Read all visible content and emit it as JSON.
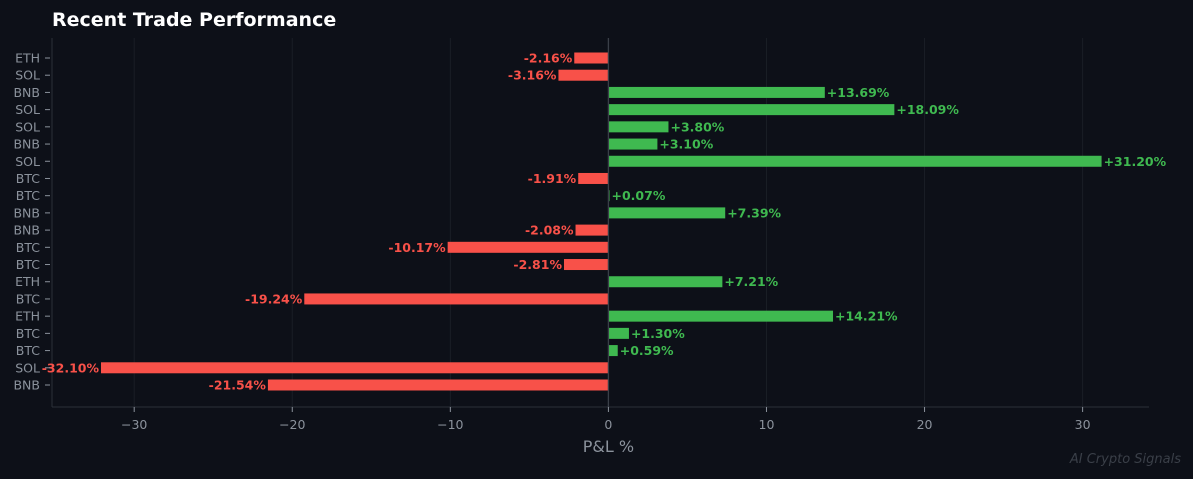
{
  "chart_data": {
    "type": "bar",
    "orientation": "horizontal",
    "title": "Recent Trade Performance",
    "xlabel": "P&L %",
    "ylabel": "",
    "xlim": [
      -35.2,
      34.2
    ],
    "xticks": [
      -30,
      -20,
      -10,
      0,
      10,
      20,
      30
    ],
    "xtick_labels": [
      "−30",
      "−20",
      "−10",
      "0",
      "10",
      "20",
      "30"
    ],
    "grid": true,
    "categories": [
      "ETH",
      "SOL",
      "BNB",
      "SOL",
      "SOL",
      "BNB",
      "SOL",
      "BTC",
      "BTC",
      "BNB",
      "BNB",
      "BTC",
      "BTC",
      "ETH",
      "BTC",
      "ETH",
      "BTC",
      "BTC",
      "SOL",
      "BNB"
    ],
    "values": [
      -2.16,
      -3.16,
      13.69,
      18.09,
      3.8,
      3.1,
      31.2,
      -1.91,
      0.07,
      7.39,
      -2.08,
      -10.17,
      -2.81,
      7.21,
      -19.24,
      14.21,
      1.3,
      0.59,
      -32.1,
      -21.54
    ],
    "data_labels": [
      "-2.16%",
      "-3.16%",
      "+13.69%",
      "+18.09%",
      "+3.80%",
      "+3.10%",
      "+31.20%",
      "-1.91%",
      "+0.07%",
      "+7.39%",
      "-2.08%",
      "-10.17%",
      "-2.81%",
      "+7.21%",
      "-19.24%",
      "+14.21%",
      "+1.30%",
      "+0.59%",
      "-32.10%",
      "-21.54%"
    ],
    "colors": {
      "positive": "#3fb950",
      "negative": "#f85149",
      "background": "#0d1018",
      "text": "#8b929c"
    }
  },
  "watermark": "AI Crypto Signals"
}
